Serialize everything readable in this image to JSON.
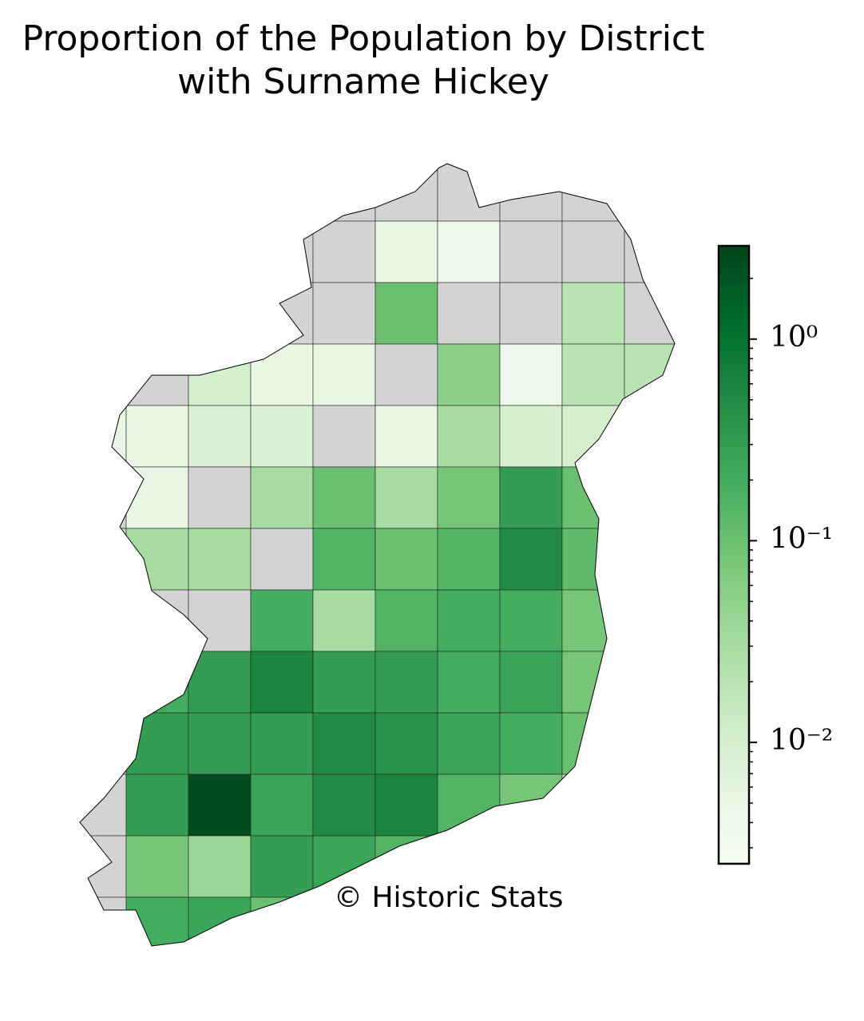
{
  "chart_data": {
    "type": "choropleth",
    "title": "Proportion of the Population by District with Surname Hickey",
    "annotation": "© Historic Stats",
    "log_scale": true,
    "missing_color": "#d3d3d3",
    "colormap": [
      "#f7fcf5",
      "#e5f5e0",
      "#c7e9c0",
      "#a1d99b",
      "#74c476",
      "#41ab5d",
      "#238b45",
      "#006d2c",
      "#00441b"
    ],
    "clim": [
      0.0025,
      2.9
    ],
    "cticks": [
      {
        "value": 1,
        "label": "10⁰"
      },
      {
        "value": 0.1,
        "label": "10⁻¹"
      },
      {
        "value": 0.01,
        "label": "10⁻²"
      }
    ],
    "minor_cticks": [
      2,
      0.9,
      0.8,
      0.7,
      0.6,
      0.5,
      0.4,
      0.3,
      0.2,
      0.09,
      0.08,
      0.07,
      0.06,
      0.05,
      0.04,
      0.03,
      0.02,
      0.009,
      0.008,
      0.007,
      0.006,
      0.005,
      0.004,
      0.003
    ],
    "values": [
      [
        null,
        null,
        null,
        null,
        null,
        null,
        null,
        null,
        null,
        null
      ],
      [
        null,
        null,
        null,
        null,
        null,
        0.005,
        0.004,
        null,
        null,
        null
      ],
      [
        null,
        null,
        null,
        null,
        null,
        0.1,
        null,
        null,
        0.02,
        null
      ],
      [
        null,
        null,
        0.01,
        0.005,
        0.005,
        null,
        0.05,
        0.004,
        0.02,
        0.02
      ],
      [
        0.005,
        0.005,
        0.008,
        0.008,
        null,
        0.005,
        0.03,
        0.01,
        0.01,
        null
      ],
      [
        null,
        0.005,
        null,
        0.03,
        0.1,
        0.03,
        0.08,
        0.3,
        0.1,
        null
      ],
      [
        null,
        0.03,
        0.03,
        null,
        0.15,
        0.1,
        0.15,
        0.5,
        0.12,
        null
      ],
      [
        null,
        null,
        null,
        0.2,
        0.03,
        0.15,
        0.2,
        0.2,
        0.08,
        null
      ],
      [
        null,
        0.2,
        0.3,
        0.6,
        0.3,
        0.3,
        0.2,
        0.25,
        0.08,
        null
      ],
      [
        null,
        0.3,
        0.3,
        0.3,
        0.5,
        0.4,
        0.25,
        0.2,
        0.1,
        null
      ],
      [
        null,
        0.3,
        2.5,
        0.25,
        0.5,
        0.6,
        0.15,
        0.08,
        null,
        null
      ],
      [
        null,
        0.08,
        0.04,
        0.3,
        0.25,
        0.15,
        null,
        null,
        null,
        null
      ],
      [
        null,
        0.2,
        0.25,
        0.1,
        null,
        null,
        null,
        null,
        null,
        null
      ]
    ]
  }
}
